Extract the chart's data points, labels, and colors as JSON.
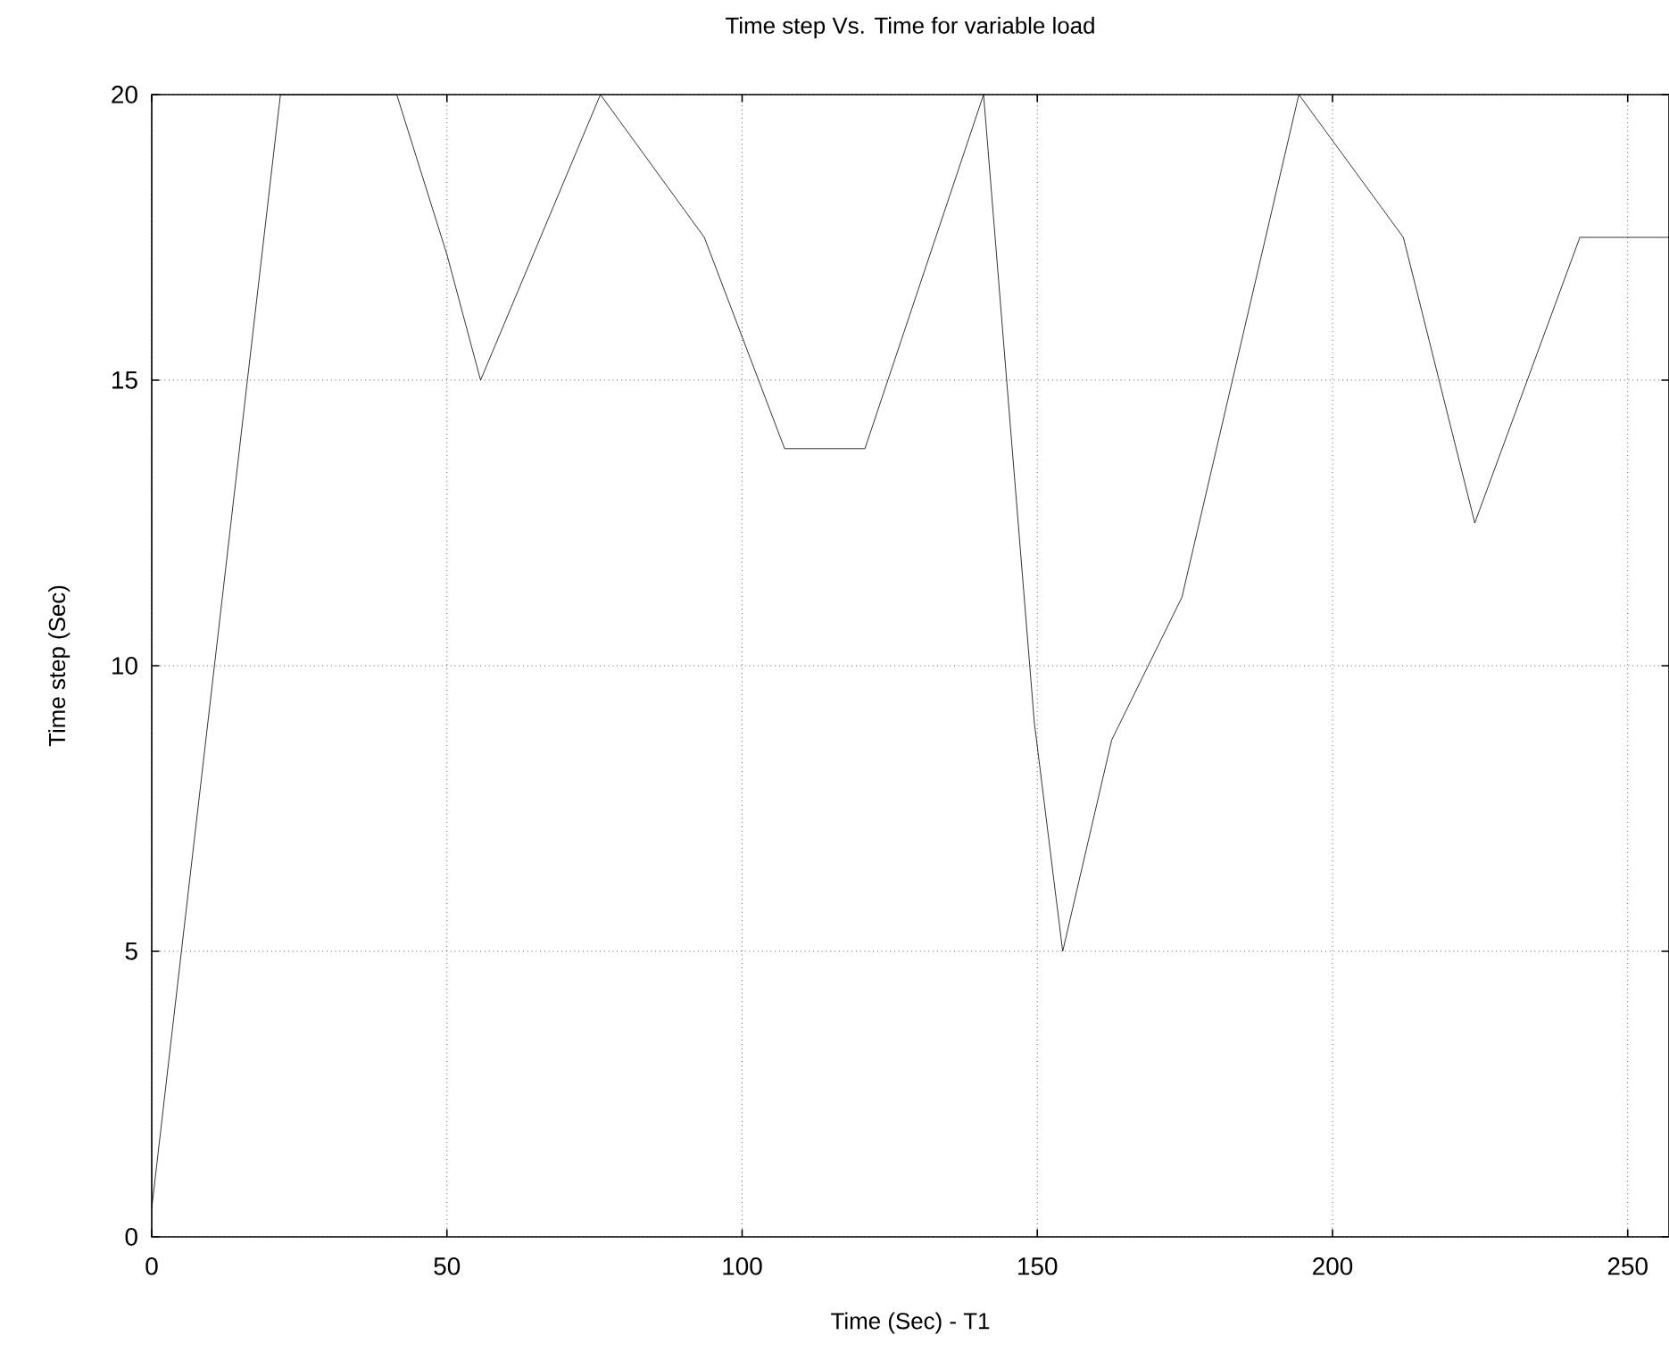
{
  "chart_data": {
    "type": "line",
    "title": "Time step Vs. Time for variable load",
    "xlabel": "Time (Sec) - T1",
    "ylabel": "Time step (Sec)",
    "x": [
      0,
      21.8,
      41.5,
      50,
      55.7,
      76,
      93.6,
      107.2,
      120.8,
      140.9,
      149.5,
      154.3,
      162.6,
      174.5,
      194.3,
      212,
      224.1,
      241.9,
      257
    ],
    "series": [
      {
        "color": "#000000",
        "values": [
          0.5,
          20,
          20,
          17.2,
          15,
          20,
          17.5,
          13.8,
          13.8,
          20,
          9,
          5,
          8.7,
          11.2,
          20,
          17.5,
          12.5,
          17.5,
          17.5
        ]
      }
    ],
    "xlim": [
      0,
      257
    ],
    "ylim": [
      0,
      20
    ],
    "xticks": [
      0,
      50,
      100,
      150,
      200,
      250
    ],
    "yticks": [
      0,
      5,
      10,
      15,
      20
    ],
    "grid": true,
    "marker": "none",
    "line_style": "solid"
  }
}
